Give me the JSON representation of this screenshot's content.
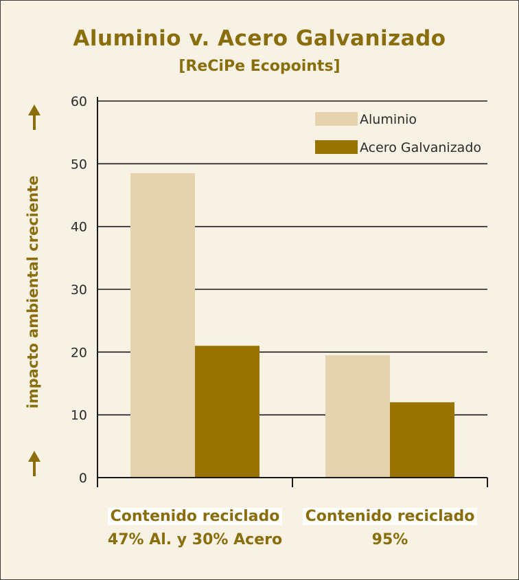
{
  "chart_data": {
    "type": "bar",
    "title": "Aluminio v. Acero Galvanizado",
    "subtitle": "[ReCiPe Ecopoints]",
    "ylabel": "impacto ambiental creciente",
    "ylim": [
      0,
      60
    ],
    "yticks": [
      0,
      10,
      20,
      30,
      40,
      50,
      60
    ],
    "grid": true,
    "legend_position": "top-right",
    "categories": [
      [
        "Contenido reciclado",
        "47% Al. y 30% Acero"
      ],
      [
        "Contenido reciclado",
        "95%"
      ]
    ],
    "series": [
      {
        "name": "Aluminio",
        "color": "#e5d3ae",
        "values": [
          48.5,
          19.5
        ]
      },
      {
        "name": "Acero Galvanizado",
        "color": "#987300",
        "values": [
          21,
          12
        ]
      }
    ]
  },
  "colors": {
    "accent": "#8a6d0c",
    "background": "#f8f2e4"
  },
  "icons": {
    "axis_arrow": "arrow-up-icon"
  }
}
